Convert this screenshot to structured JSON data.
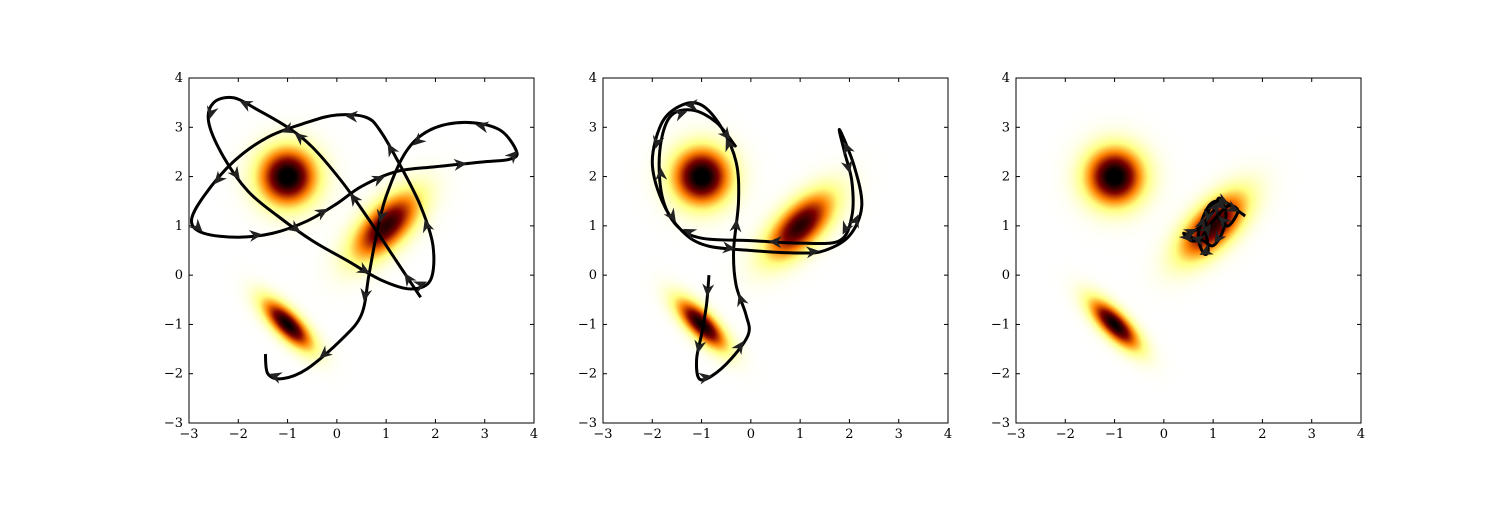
{
  "chart_data": [
    {
      "type": "heatmap",
      "title": "",
      "xlabel": "",
      "ylabel": "",
      "xlim": [
        -3,
        4
      ],
      "ylim": [
        -3,
        4
      ],
      "xticks": [
        "−3",
        "−2",
        "−1",
        "0",
        "1",
        "2",
        "3",
        "4"
      ],
      "yticks": [
        "−3",
        "−2",
        "−1",
        "0",
        "1",
        "2",
        "3",
        "4"
      ],
      "grid": false,
      "colormap": "afmhot_r",
      "density_components": [
        {
          "mean": [
            -1,
            2
          ],
          "cov": [
            [
              0.16,
              0
            ],
            [
              0,
              0.16
            ]
          ],
          "weight": 0.8
        },
        {
          "mean": [
            -1,
            -1
          ],
          "cov": [
            [
              0.12,
              -0.09
            ],
            [
              -0.09,
              0.12
            ]
          ],
          "weight": 0.75
        },
        {
          "mean": [
            1,
            1
          ],
          "cov": [
            [
              0.22,
              0.14
            ],
            [
              0.14,
              0.22
            ]
          ],
          "weight": 0.7
        }
      ],
      "trajectory": [
        [
          1.7,
          -0.45
        ],
        [
          1.2,
          0.3
        ],
        [
          0.6,
          1.2
        ],
        [
          0.1,
          1.9
        ],
        [
          -0.5,
          2.6
        ],
        [
          -1,
          3.0
        ],
        [
          -1.6,
          3.35
        ],
        [
          -2.1,
          3.6
        ],
        [
          -2.5,
          3.5
        ],
        [
          -2.6,
          3.1
        ],
        [
          -2.3,
          2.4
        ],
        [
          -1.8,
          1.7
        ],
        [
          -1.2,
          1.2
        ],
        [
          -0.5,
          0.7
        ],
        [
          0.2,
          0.3
        ],
        [
          0.9,
          -0.1
        ],
        [
          1.5,
          -0.28
        ],
        [
          1.9,
          -0.1
        ],
        [
          1.95,
          0.6
        ],
        [
          1.7,
          1.4
        ],
        [
          1.3,
          2.2
        ],
        [
          0.9,
          2.9
        ],
        [
          0.6,
          3.2
        ],
        [
          0,
          3.25
        ],
        [
          -0.6,
          3.1
        ],
        [
          -1.4,
          2.8
        ],
        [
          -2.1,
          2.3
        ],
        [
          -2.7,
          1.6
        ],
        [
          -2.95,
          1.1
        ],
        [
          -2.7,
          0.85
        ],
        [
          -2.0,
          0.77
        ],
        [
          -1.3,
          0.85
        ],
        [
          -0.6,
          1.1
        ],
        [
          0,
          1.45
        ],
        [
          0.5,
          1.8
        ],
        [
          1.2,
          2.1
        ],
        [
          2,
          2.2
        ],
        [
          3,
          2.3
        ],
        [
          3.5,
          2.35
        ],
        [
          3.65,
          2.5
        ],
        [
          3.3,
          2.95
        ],
        [
          2.6,
          3.1
        ],
        [
          1.9,
          2.95
        ],
        [
          1.4,
          2.5
        ],
        [
          1.0,
          1.6
        ],
        [
          0.8,
          0.8
        ],
        [
          0.65,
          0
        ],
        [
          0.5,
          -0.8
        ],
        [
          0.1,
          -1.3
        ],
        [
          -0.6,
          -1.9
        ],
        [
          -1.1,
          -2.1
        ],
        [
          -1.4,
          -2.0
        ],
        [
          -1.45,
          -1.6
        ]
      ]
    },
    {
      "type": "heatmap",
      "title": "",
      "xlabel": "",
      "ylabel": "",
      "xlim": [
        -3,
        4
      ],
      "ylim": [
        -3,
        4
      ],
      "xticks": [
        "−3",
        "−2",
        "−1",
        "0",
        "1",
        "2",
        "3",
        "4"
      ],
      "yticks": [
        "−3",
        "−2",
        "−1",
        "0",
        "1",
        "2",
        "3",
        "4"
      ],
      "grid": false,
      "colormap": "afmhot_r",
      "density_components": [
        {
          "mean": [
            -1,
            2
          ],
          "cov": [
            [
              0.16,
              0
            ],
            [
              0,
              0.16
            ]
          ],
          "weight": 0.8
        },
        {
          "mean": [
            -1,
            -1
          ],
          "cov": [
            [
              0.12,
              -0.09
            ],
            [
              -0.09,
              0.12
            ]
          ],
          "weight": 0.75
        },
        {
          "mean": [
            1,
            1
          ],
          "cov": [
            [
              0.22,
              0.14
            ],
            [
              0.14,
              0.22
            ]
          ],
          "weight": 0.7
        }
      ],
      "trajectory": [
        [
          -0.85,
          0
        ],
        [
          -0.9,
          -0.6
        ],
        [
          -1.0,
          -1.2
        ],
        [
          -1.1,
          -1.7
        ],
        [
          -1.05,
          -2.1
        ],
        [
          -0.8,
          -2.05
        ],
        [
          -0.4,
          -1.7
        ],
        [
          -0.05,
          -1.2
        ],
        [
          -0.1,
          -0.8
        ],
        [
          -0.3,
          -0.2
        ],
        [
          -0.35,
          0.5
        ],
        [
          -0.25,
          1.5
        ],
        [
          -0.3,
          2.3
        ],
        [
          -0.6,
          3.0
        ],
        [
          -1.0,
          3.45
        ],
        [
          -1.4,
          3.45
        ],
        [
          -1.8,
          3.1
        ],
        [
          -2,
          2.3
        ],
        [
          -1.8,
          1.5
        ],
        [
          -1.4,
          0.9
        ],
        [
          -0.9,
          0.6
        ],
        [
          0,
          0.5
        ],
        [
          1,
          0.45
        ],
        [
          1.5,
          0.5
        ],
        [
          2,
          0.8
        ],
        [
          2.25,
          1.4
        ],
        [
          2.1,
          2.2
        ],
        [
          1.8,
          2.95
        ],
        [
          1.9,
          2.5
        ],
        [
          2.05,
          1.9
        ],
        [
          2.05,
          1.2
        ],
        [
          1.8,
          0.7
        ],
        [
          1,
          0.65
        ],
        [
          0,
          0.7
        ],
        [
          -1,
          0.75
        ],
        [
          -1.5,
          1
        ],
        [
          -1.8,
          1.6
        ],
        [
          -1.85,
          2.5
        ],
        [
          -1.65,
          3.2
        ],
        [
          -1.2,
          3.35
        ],
        [
          -0.7,
          3.1
        ],
        [
          -0.3,
          2.6
        ]
      ]
    },
    {
      "type": "heatmap",
      "title": "",
      "xlabel": "",
      "ylabel": "",
      "xlim": [
        -3,
        4
      ],
      "ylim": [
        -3,
        4
      ],
      "xticks": [
        "−3",
        "−2",
        "−1",
        "0",
        "1",
        "2",
        "3",
        "4"
      ],
      "yticks": [
        "−3",
        "−2",
        "−1",
        "0",
        "1",
        "2",
        "3",
        "4"
      ],
      "grid": false,
      "colormap": "afmhot_r",
      "density_components": [
        {
          "mean": [
            -1,
            2
          ],
          "cov": [
            [
              0.16,
              0
            ],
            [
              0,
              0.16
            ]
          ],
          "weight": 0.8
        },
        {
          "mean": [
            -1,
            -1
          ],
          "cov": [
            [
              0.12,
              -0.09
            ],
            [
              -0.09,
              0.12
            ]
          ],
          "weight": 0.75
        },
        {
          "mean": [
            1,
            1
          ],
          "cov": [
            [
              0.22,
              0.14
            ],
            [
              0.14,
              0.22
            ]
          ],
          "weight": 0.7
        }
      ],
      "trajectory": [
        [
          0.4,
          0.8
        ],
        [
          0.7,
          0.95
        ],
        [
          1.0,
          1.3
        ],
        [
          1.1,
          1.45
        ],
        [
          0.95,
          1.4
        ],
        [
          0.85,
          1.0
        ],
        [
          0.9,
          0.5
        ],
        [
          0.8,
          0.45
        ],
        [
          0.7,
          0.8
        ],
        [
          0.85,
          1.3
        ],
        [
          1.05,
          1.5
        ],
        [
          1.25,
          1.35
        ],
        [
          1.2,
          0.9
        ],
        [
          1.0,
          0.6
        ],
        [
          0.8,
          0.7
        ],
        [
          0.6,
          0.75
        ],
        [
          0.4,
          0.85
        ],
        [
          0.55,
          0.7
        ],
        [
          0.75,
          0.75
        ],
        [
          1.0,
          1.1
        ],
        [
          1.3,
          1.4
        ],
        [
          1.5,
          1.3
        ],
        [
          1.3,
          1.0
        ],
        [
          1.1,
          1.2
        ],
        [
          1.1,
          1.55
        ],
        [
          1.3,
          1.45
        ],
        [
          1.65,
          1.2
        ]
      ]
    }
  ]
}
